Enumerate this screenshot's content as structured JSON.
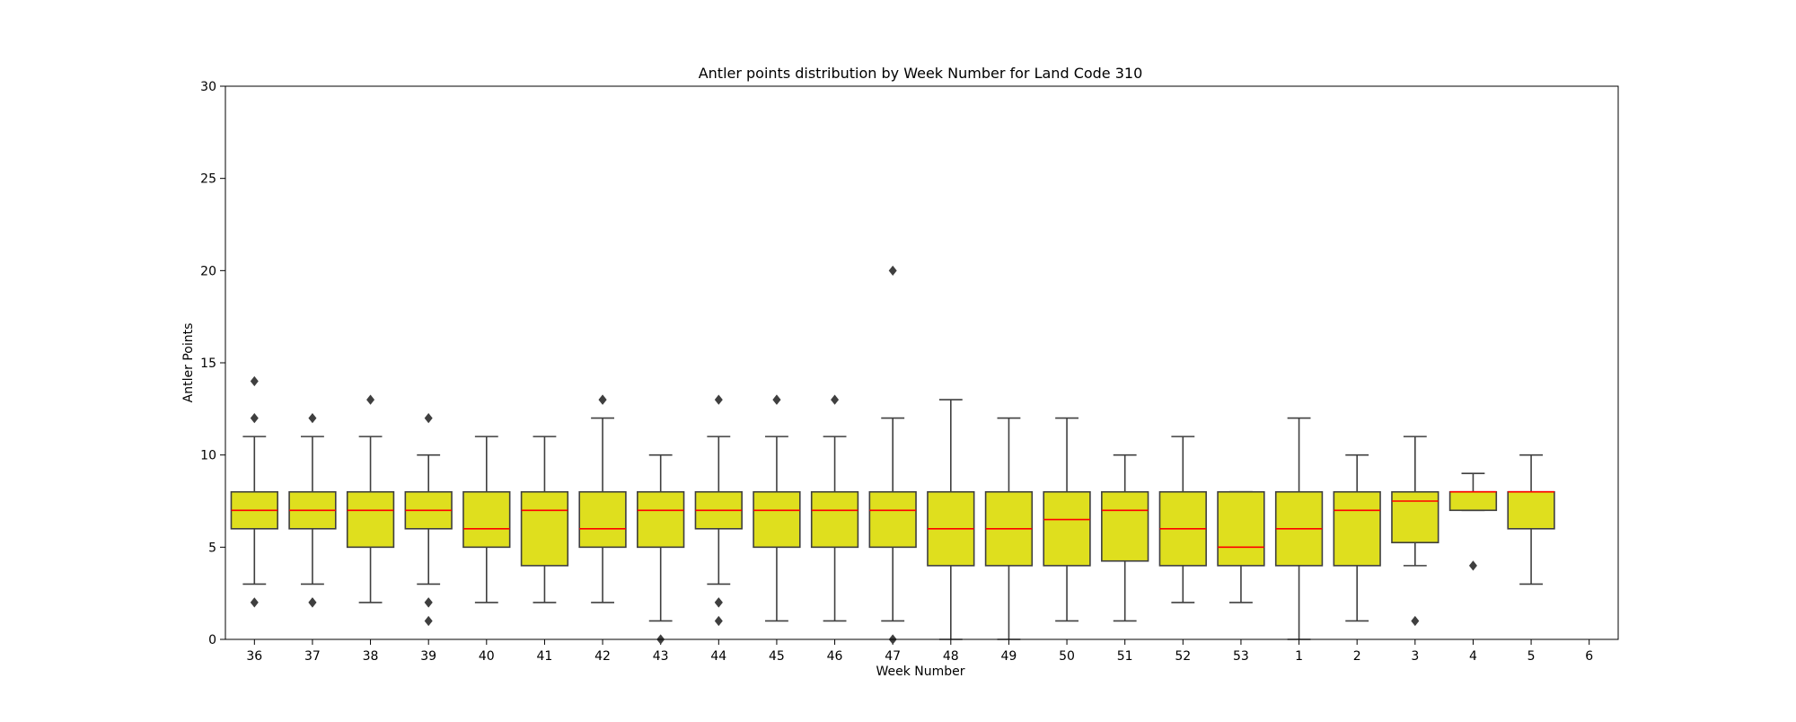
{
  "chart_data": {
    "type": "boxplot",
    "title": "Antler points distribution by Week Number for Land Code 310",
    "xlabel": "Week Number",
    "ylabel": "Antler Points",
    "ylim": [
      0,
      30
    ],
    "yticks": [
      0,
      5,
      10,
      15,
      20,
      25,
      30
    ],
    "grid": false,
    "colors": {
      "box_fill": "#dfdf1e",
      "box_edge": "#3f3f3f",
      "median": "#ff0000",
      "outlier": "#3f3f3f"
    },
    "categories": [
      "36",
      "37",
      "38",
      "39",
      "40",
      "41",
      "42",
      "43",
      "44",
      "45",
      "46",
      "47",
      "48",
      "49",
      "50",
      "51",
      "52",
      "53",
      "1",
      "2",
      "3",
      "4",
      "5",
      "6"
    ],
    "boxes": [
      {
        "week": "36",
        "whisker_low": 3,
        "q1": 6,
        "median": 7,
        "q3": 8,
        "whisker_high": 11,
        "outliers": [
          2,
          12,
          14
        ]
      },
      {
        "week": "37",
        "whisker_low": 3,
        "q1": 6,
        "median": 7,
        "q3": 8,
        "whisker_high": 11,
        "outliers": [
          2,
          2,
          12
        ]
      },
      {
        "week": "38",
        "whisker_low": 2,
        "q1": 5,
        "median": 7,
        "q3": 8,
        "whisker_high": 11,
        "outliers": [
          13
        ]
      },
      {
        "week": "39",
        "whisker_low": 3,
        "q1": 6,
        "median": 7,
        "q3": 8,
        "whisker_high": 10,
        "outliers": [
          1,
          2,
          2,
          12
        ]
      },
      {
        "week": "40",
        "whisker_low": 2,
        "q1": 5,
        "median": 6,
        "q3": 8,
        "whisker_high": 11,
        "outliers": []
      },
      {
        "week": "41",
        "whisker_low": 2,
        "q1": 4,
        "median": 7,
        "q3": 8,
        "whisker_high": 11,
        "outliers": []
      },
      {
        "week": "42",
        "whisker_low": 2,
        "q1": 5,
        "median": 6,
        "q3": 8,
        "whisker_high": 12,
        "outliers": [
          13,
          13
        ]
      },
      {
        "week": "43",
        "whisker_low": 1,
        "q1": 5,
        "median": 7,
        "q3": 8,
        "whisker_high": 10,
        "outliers": [
          0
        ]
      },
      {
        "week": "44",
        "whisker_low": 3,
        "q1": 6,
        "median": 7,
        "q3": 8,
        "whisker_high": 11,
        "outliers": [
          1,
          2,
          2,
          13
        ]
      },
      {
        "week": "45",
        "whisker_low": 1,
        "q1": 5,
        "median": 7,
        "q3": 8,
        "whisker_high": 11,
        "outliers": [
          13,
          13
        ]
      },
      {
        "week": "46",
        "whisker_low": 1,
        "q1": 5,
        "median": 7,
        "q3": 8,
        "whisker_high": 11,
        "outliers": [
          13
        ]
      },
      {
        "week": "47",
        "whisker_low": 1,
        "q1": 5,
        "median": 7,
        "q3": 8,
        "whisker_high": 12,
        "outliers": [
          0,
          20
        ]
      },
      {
        "week": "48",
        "whisker_low": 0,
        "q1": 4,
        "median": 6,
        "q3": 8,
        "whisker_high": 13,
        "outliers": []
      },
      {
        "week": "49",
        "whisker_low": 0,
        "q1": 4,
        "median": 6,
        "q3": 8,
        "whisker_high": 12,
        "outliers": []
      },
      {
        "week": "50",
        "whisker_low": 1,
        "q1": 4,
        "median": 6.5,
        "q3": 8,
        "whisker_high": 12,
        "outliers": []
      },
      {
        "week": "51",
        "whisker_low": 1,
        "q1": 4.25,
        "median": 7,
        "q3": 8,
        "whisker_high": 10,
        "outliers": []
      },
      {
        "week": "52",
        "whisker_low": 2,
        "q1": 4,
        "median": 6,
        "q3": 8,
        "whisker_high": 11,
        "outliers": []
      },
      {
        "week": "53",
        "whisker_low": 2,
        "q1": 4,
        "median": 5,
        "q3": 8,
        "whisker_high": 8,
        "outliers": []
      },
      {
        "week": "1",
        "whisker_low": 0,
        "q1": 4,
        "median": 6,
        "q3": 8,
        "whisker_high": 12,
        "outliers": []
      },
      {
        "week": "2",
        "whisker_low": 1,
        "q1": 4,
        "median": 7,
        "q3": 8,
        "whisker_high": 10,
        "outliers": []
      },
      {
        "week": "3",
        "whisker_low": 4,
        "q1": 5.25,
        "median": 7.5,
        "q3": 8,
        "whisker_high": 11,
        "outliers": [
          1
        ]
      },
      {
        "week": "4",
        "whisker_low": 7,
        "q1": 7,
        "median": 8,
        "q3": 8,
        "whisker_high": 9,
        "outliers": [
          4
        ]
      },
      {
        "week": "5",
        "whisker_low": 3,
        "q1": 6,
        "median": 8,
        "q3": 8,
        "whisker_high": 10,
        "outliers": []
      },
      {
        "week": "6",
        "whisker_low": null,
        "q1": null,
        "median": null,
        "q3": null,
        "whisker_high": null,
        "outliers": []
      }
    ]
  }
}
